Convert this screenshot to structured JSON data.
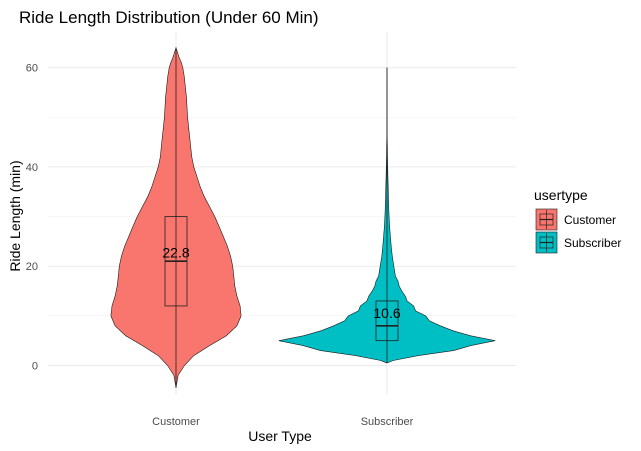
{
  "chart_data": {
    "type": "violin",
    "title": "Ride Length Distribution (Under 60 Min)",
    "xlabel": "User Type",
    "ylabel": "Ride Length (min)",
    "categories": [
      "Customer",
      "Subscriber"
    ],
    "ylim": [
      -5,
      66
    ],
    "yticks": [
      0,
      20,
      40,
      60
    ],
    "grid": true,
    "legend": {
      "title": "usertype",
      "position": "right",
      "entries": [
        {
          "label": "Customer",
          "color": "#F8766D"
        },
        {
          "label": "Subscriber",
          "color": "#00BFC4"
        }
      ]
    },
    "series": [
      {
        "name": "Customer",
        "color": "#F8766D",
        "violin_range": [
          -4.5,
          64
        ],
        "density_profile": [
          [
            -4.5,
            0.0
          ],
          [
            -2,
            0.02
          ],
          [
            0,
            0.08
          ],
          [
            2,
            0.17
          ],
          [
            4,
            0.32
          ],
          [
            6,
            0.48
          ],
          [
            8,
            0.58
          ],
          [
            10,
            0.62
          ],
          [
            12,
            0.61
          ],
          [
            14,
            0.58
          ],
          [
            16,
            0.56
          ],
          [
            18,
            0.55
          ],
          [
            20,
            0.54
          ],
          [
            22,
            0.52
          ],
          [
            24,
            0.49
          ],
          [
            26,
            0.45
          ],
          [
            28,
            0.41
          ],
          [
            30,
            0.37
          ],
          [
            32,
            0.32
          ],
          [
            34,
            0.27
          ],
          [
            36,
            0.23
          ],
          [
            38,
            0.2
          ],
          [
            40,
            0.17
          ],
          [
            42,
            0.15
          ],
          [
            44,
            0.14
          ],
          [
            46,
            0.13
          ],
          [
            48,
            0.12
          ],
          [
            50,
            0.11
          ],
          [
            52,
            0.105
          ],
          [
            54,
            0.1
          ],
          [
            56,
            0.09
          ],
          [
            58,
            0.08
          ],
          [
            60,
            0.065
          ],
          [
            61,
            0.05
          ],
          [
            62,
            0.03
          ],
          [
            63,
            0.015
          ],
          [
            64,
            0.0
          ]
        ],
        "boxplot": {
          "q1": 12,
          "median": 21,
          "q3": 30,
          "whisker_low": -4.5,
          "whisker_high": 64
        },
        "mean": 22.8,
        "mean_label": "22.8"
      },
      {
        "name": "Subscriber",
        "color": "#00BFC4",
        "violin_range": [
          0.5,
          60
        ],
        "density_profile": [
          [
            0.5,
            0.0
          ],
          [
            1,
            0.06
          ],
          [
            2,
            0.3
          ],
          [
            3,
            0.6
          ],
          [
            4,
            0.85
          ],
          [
            5,
            0.98
          ],
          [
            6,
            0.82
          ],
          [
            7,
            0.62
          ],
          [
            8,
            0.5
          ],
          [
            9,
            0.42
          ],
          [
            10,
            0.35
          ],
          [
            11,
            0.29
          ],
          [
            12,
            0.24
          ],
          [
            13,
            0.2
          ],
          [
            14,
            0.17
          ],
          [
            15,
            0.14
          ],
          [
            16,
            0.12
          ],
          [
            17,
            0.1
          ],
          [
            18,
            0.085
          ],
          [
            20,
            0.065
          ],
          [
            22,
            0.05
          ],
          [
            24,
            0.04
          ],
          [
            26,
            0.032
          ],
          [
            28,
            0.025
          ],
          [
            30,
            0.02
          ],
          [
            32,
            0.016
          ],
          [
            34,
            0.013
          ],
          [
            36,
            0.011
          ],
          [
            38,
            0.009
          ],
          [
            40,
            0.007
          ],
          [
            42,
            0.005
          ],
          [
            44,
            0.004
          ],
          [
            46,
            0.002
          ],
          [
            50,
            0.001
          ],
          [
            55,
            0.0005
          ],
          [
            60,
            0.0
          ]
        ],
        "boxplot": {
          "q1": 5,
          "median": 8,
          "q3": 13,
          "whisker_low": 0.5,
          "whisker_high": 60
        },
        "mean": 10.6,
        "mean_label": "10.6"
      }
    ]
  }
}
